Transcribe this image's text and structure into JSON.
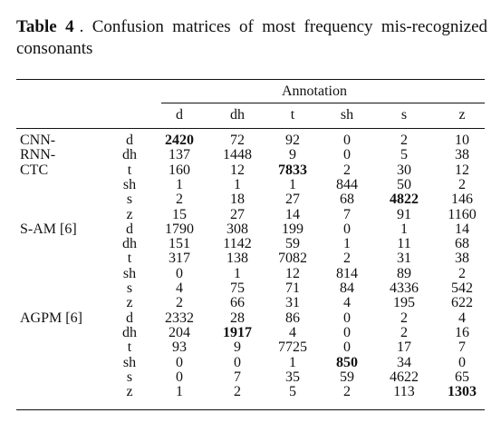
{
  "caption": {
    "label": "Table 4",
    "text": "Confusion matrices of most frequency mis-recognized consonants"
  },
  "table": {
    "header": "Annotation",
    "columns": [
      "d",
      "dh",
      "t",
      "sh",
      "s",
      "z"
    ],
    "groups": [
      {
        "name": [
          "CNN-",
          "RNN-",
          "CTC"
        ],
        "rows": [
          {
            "label": "d",
            "cells": [
              {
                "value": 2420,
                "bold": true
              },
              72,
              92,
              0,
              2,
              10
            ]
          },
          {
            "label": "dh",
            "cells": [
              137,
              1448,
              9,
              0,
              5,
              38
            ]
          },
          {
            "label": "t",
            "cells": [
              160,
              12,
              {
                "value": 7833,
                "bold": true
              },
              2,
              30,
              12
            ]
          },
          {
            "label": "sh",
            "cells": [
              1,
              1,
              1,
              844,
              50,
              2
            ]
          },
          {
            "label": "s",
            "cells": [
              2,
              18,
              27,
              68,
              {
                "value": 4822,
                "bold": true
              },
              146
            ]
          },
          {
            "label": "z",
            "cells": [
              15,
              27,
              14,
              7,
              91,
              1160
            ]
          }
        ]
      },
      {
        "name": [
          "S-AM [6]"
        ],
        "rows": [
          {
            "label": "d",
            "cells": [
              1790,
              308,
              199,
              0,
              1,
              14
            ]
          },
          {
            "label": "dh",
            "cells": [
              151,
              1142,
              59,
              1,
              11,
              68
            ]
          },
          {
            "label": "t",
            "cells": [
              317,
              138,
              7082,
              2,
              31,
              38
            ]
          },
          {
            "label": "sh",
            "cells": [
              0,
              1,
              12,
              814,
              89,
              2
            ]
          },
          {
            "label": "s",
            "cells": [
              4,
              75,
              71,
              84,
              4336,
              542
            ]
          },
          {
            "label": "z",
            "cells": [
              2,
              66,
              31,
              4,
              195,
              622
            ]
          }
        ]
      },
      {
        "name": [
          "AGPM [6]"
        ],
        "rows": [
          {
            "label": "d",
            "cells": [
              2332,
              28,
              86,
              0,
              2,
              4
            ]
          },
          {
            "label": "dh",
            "cells": [
              204,
              {
                "value": 1917,
                "bold": true
              },
              4,
              0,
              2,
              16
            ]
          },
          {
            "label": "t",
            "cells": [
              93,
              9,
              7725,
              0,
              17,
              7
            ]
          },
          {
            "label": "sh",
            "cells": [
              0,
              0,
              1,
              {
                "value": 850,
                "bold": true
              },
              34,
              0
            ]
          },
          {
            "label": "s",
            "cells": [
              0,
              7,
              35,
              59,
              4622,
              65
            ]
          },
          {
            "label": "z",
            "cells": [
              1,
              2,
              5,
              2,
              113,
              {
                "value": 1303,
                "bold": true
              }
            ]
          }
        ]
      }
    ]
  }
}
